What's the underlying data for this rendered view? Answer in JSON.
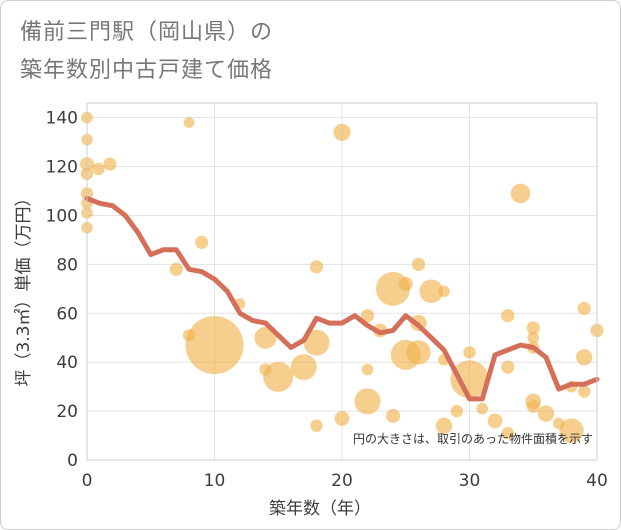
{
  "title_line1": "備前三門駅（岡山県）の",
  "title_line2": "築年数別中古戸建て価格",
  "chart_data": {
    "type": "scatter",
    "title": "備前三門駅（岡山県）の築年数別中古戸建て価格",
    "xlabel": "築年数（年）",
    "ylabel": "坪（3.3㎡）単価（万円）",
    "xlim": [
      0,
      40
    ],
    "ylim": [
      0,
      146
    ],
    "xticks": [
      0,
      10,
      20,
      30,
      40
    ],
    "yticks": [
      0,
      20,
      40,
      60,
      80,
      100,
      120,
      140
    ],
    "grid": true,
    "note": "円の大きさは、取引のあった物件面積を示す",
    "bubble_color": "#f0b24a",
    "line_color": "#d4705a",
    "bubbles": [
      {
        "x": 0,
        "y": 140,
        "s": 1.2
      },
      {
        "x": 0,
        "y": 131,
        "s": 1.2
      },
      {
        "x": 0,
        "y": 121,
        "s": 1.5
      },
      {
        "x": 0,
        "y": 117,
        "s": 1.3
      },
      {
        "x": 0,
        "y": 109,
        "s": 1.3
      },
      {
        "x": 0,
        "y": 105,
        "s": 1.2
      },
      {
        "x": 0,
        "y": 101,
        "s": 1.2
      },
      {
        "x": 0,
        "y": 95,
        "s": 1.2
      },
      {
        "x": 0.9,
        "y": 119,
        "s": 1.3
      },
      {
        "x": 1.8,
        "y": 121,
        "s": 1.4
      },
      {
        "x": 7,
        "y": 78,
        "s": 1.4
      },
      {
        "x": 8,
        "y": 138,
        "s": 1.1
      },
      {
        "x": 8,
        "y": 51,
        "s": 1.3
      },
      {
        "x": 9,
        "y": 89,
        "s": 1.4
      },
      {
        "x": 10,
        "y": 47,
        "s": 7.0
      },
      {
        "x": 12,
        "y": 64,
        "s": 1.1
      },
      {
        "x": 14,
        "y": 50,
        "s": 2.5
      },
      {
        "x": 14,
        "y": 37,
        "s": 1.3
      },
      {
        "x": 15,
        "y": 34,
        "s": 3.5
      },
      {
        "x": 17,
        "y": 38,
        "s": 3.0
      },
      {
        "x": 18,
        "y": 79,
        "s": 1.4
      },
      {
        "x": 18,
        "y": 48,
        "s": 3.0
      },
      {
        "x": 18,
        "y": 14,
        "s": 1.3
      },
      {
        "x": 20,
        "y": 134,
        "s": 1.9
      },
      {
        "x": 20,
        "y": 17,
        "s": 1.6
      },
      {
        "x": 22,
        "y": 59,
        "s": 1.4
      },
      {
        "x": 22,
        "y": 24,
        "s": 3.0
      },
      {
        "x": 23,
        "y": 53,
        "s": 1.5
      },
      {
        "x": 22,
        "y": 37,
        "s": 1.2
      },
      {
        "x": 24,
        "y": 70,
        "s": 4.0
      },
      {
        "x": 24,
        "y": 18,
        "s": 1.5
      },
      {
        "x": 25,
        "y": 72,
        "s": 1.5
      },
      {
        "x": 25,
        "y": 43,
        "s": 3.5
      },
      {
        "x": 26,
        "y": 80,
        "s": 1.4
      },
      {
        "x": 26,
        "y": 56,
        "s": 1.8
      },
      {
        "x": 26,
        "y": 44,
        "s": 2.8
      },
      {
        "x": 27,
        "y": 69,
        "s": 2.7
      },
      {
        "x": 28,
        "y": 69,
        "s": 1.2
      },
      {
        "x": 28,
        "y": 41,
        "s": 1.2
      },
      {
        "x": 28,
        "y": 14,
        "s": 1.8
      },
      {
        "x": 29,
        "y": 20,
        "s": 1.3
      },
      {
        "x": 30,
        "y": 44,
        "s": 1.3
      },
      {
        "x": 30,
        "y": 33,
        "s": 4.5
      },
      {
        "x": 31,
        "y": 21,
        "s": 1.2
      },
      {
        "x": 32,
        "y": 16,
        "s": 1.6
      },
      {
        "x": 33,
        "y": 59,
        "s": 1.4
      },
      {
        "x": 33,
        "y": 38,
        "s": 1.4
      },
      {
        "x": 33,
        "y": 11,
        "s": 1.3
      },
      {
        "x": 34,
        "y": 109,
        "s": 2.2
      },
      {
        "x": 35,
        "y": 54,
        "s": 1.4
      },
      {
        "x": 35,
        "y": 50,
        "s": 1.2
      },
      {
        "x": 35,
        "y": 46,
        "s": 1.3
      },
      {
        "x": 35,
        "y": 24,
        "s": 1.7
      },
      {
        "x": 35,
        "y": 22,
        "s": 1.4
      },
      {
        "x": 36,
        "y": 19,
        "s": 1.8
      },
      {
        "x": 37,
        "y": 15,
        "s": 1.2
      },
      {
        "x": 38,
        "y": 30,
        "s": 1.2
      },
      {
        "x": 38,
        "y": 12,
        "s": 2.8
      },
      {
        "x": 39,
        "y": 62,
        "s": 1.4
      },
      {
        "x": 39,
        "y": 42,
        "s": 1.8
      },
      {
        "x": 39,
        "y": 28,
        "s": 1.3
      },
      {
        "x": 40,
        "y": 53,
        "s": 1.4
      }
    ],
    "line": {
      "x": [
        0,
        1,
        2,
        3,
        4,
        5,
        6,
        7,
        8,
        9,
        10,
        11,
        12,
        13,
        14,
        15,
        16,
        17,
        18,
        19,
        20,
        21,
        22,
        23,
        24,
        25,
        26,
        27,
        28,
        29,
        30,
        31,
        32,
        33,
        34,
        35,
        36,
        37,
        38,
        39,
        40
      ],
      "y": [
        107,
        105,
        104,
        100,
        93,
        84,
        86,
        86,
        78,
        77,
        74,
        69,
        60,
        57,
        56,
        51,
        46,
        49,
        58,
        56,
        56,
        59,
        55,
        52,
        53,
        59,
        55,
        50,
        45,
        35,
        25,
        25,
        43,
        45,
        47,
        46,
        42,
        29,
        31,
        31,
        33
      ]
    }
  }
}
